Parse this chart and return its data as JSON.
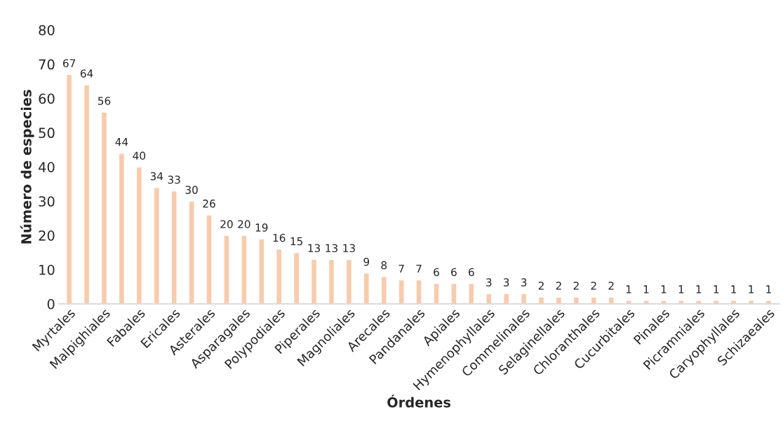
{
  "chart_data": {
    "type": "bar",
    "xlabel": "Órdenes",
    "ylabel": "Número de especies",
    "categories": [
      "Myrtales",
      null,
      "Malpighiales",
      null,
      "Fabales",
      null,
      "Ericales",
      null,
      "Asterales",
      null,
      "Asparagales",
      null,
      "Polypodiales",
      null,
      "Piperales",
      null,
      "Magnoliales",
      null,
      "Arecales",
      null,
      "Pandanales",
      null,
      "Apiales",
      null,
      "Hymenophyllales",
      null,
      "Commelinales",
      null,
      "Selaginellales",
      null,
      "Chloranthales",
      null,
      "Cucurbitales",
      null,
      "Pinales",
      null,
      "Picramniales",
      null,
      "Caryophyllales",
      null,
      "Schizaeales"
    ],
    "values": [
      67,
      64,
      56,
      44,
      40,
      34,
      33,
      30,
      26,
      20,
      20,
      19,
      16,
      15,
      13,
      13,
      13,
      9,
      8,
      7,
      7,
      6,
      6,
      6,
      3,
      3,
      3,
      2,
      2,
      2,
      2,
      2,
      1,
      1,
      1,
      1,
      1,
      1,
      1,
      1,
      1
    ],
    "color": "#f8cbad",
    "ylim": [
      0,
      80
    ],
    "yticks": [
      0,
      10,
      20,
      30,
      40,
      50,
      60,
      70,
      80
    ],
    "data_labels": true,
    "grid": false
  }
}
